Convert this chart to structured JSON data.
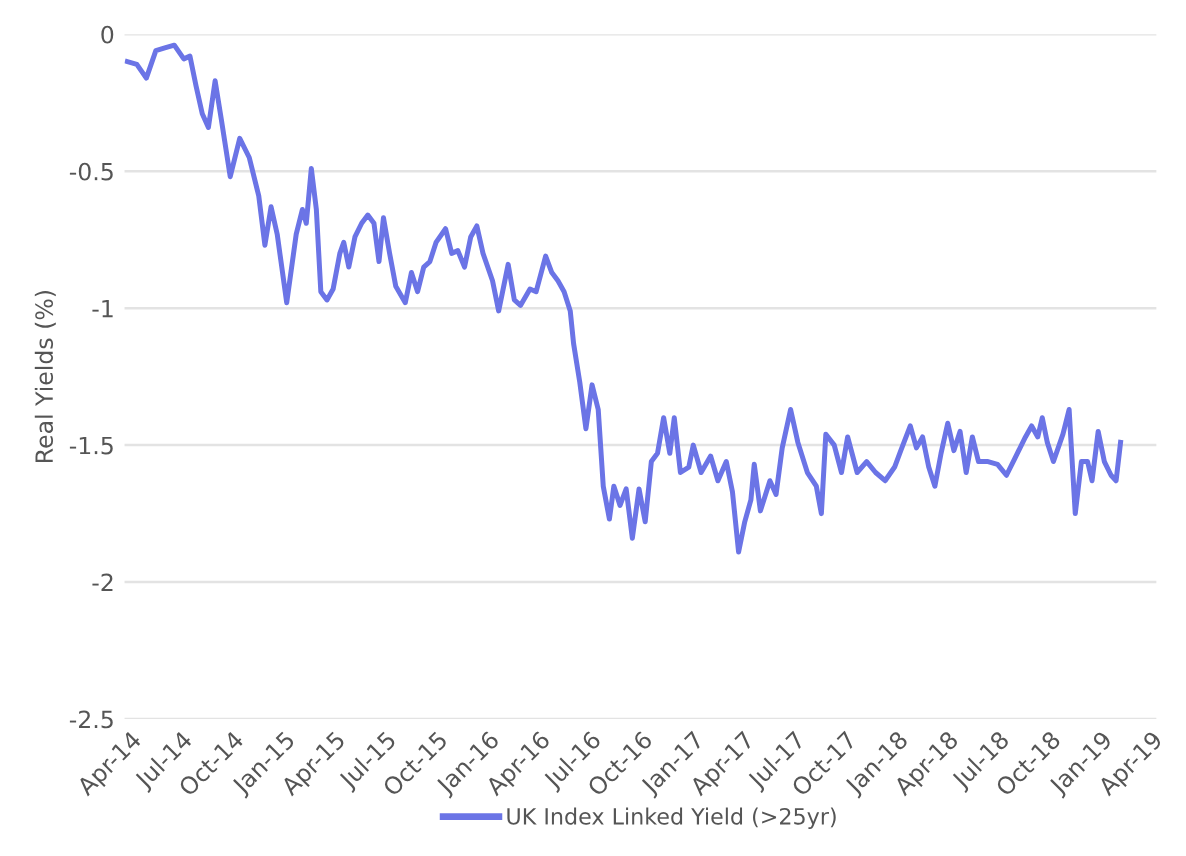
{
  "chart_data": {
    "type": "line",
    "ylabel": "Real Yields (%)",
    "legend": "bottom",
    "grid": "y",
    "line_style": "solid",
    "marker": "none",
    "xlim": [
      "2014-03-22",
      "2019-04-10"
    ],
    "ylim": [
      -2.5,
      0
    ],
    "yticks": [
      0,
      {
        "value": -0.5,
        "label": "-0.5"
      },
      {
        "value": -1,
        "label": "-1"
      },
      {
        "value": -1.5,
        "label": "-1.5"
      },
      {
        "value": -2,
        "label": "-2"
      },
      {
        "value": -2.5,
        "label": "-2.5"
      }
    ],
    "xticks": [
      {
        "value": "2014-04-01",
        "label": "Apr-14"
      },
      {
        "value": "2014-07-01",
        "label": "Jul-14"
      },
      {
        "value": "2014-10-01",
        "label": "Oct-14"
      },
      {
        "value": "2015-01-01",
        "label": "Jan-15"
      },
      {
        "value": "2015-04-01",
        "label": "Apr-15"
      },
      {
        "value": "2015-07-01",
        "label": "Jul-15"
      },
      {
        "value": "2015-10-01",
        "label": "Oct-15"
      },
      {
        "value": "2016-01-01",
        "label": "Jan-16"
      },
      {
        "value": "2016-04-01",
        "label": "Apr-16"
      },
      {
        "value": "2016-07-01",
        "label": "Jul-16"
      },
      {
        "value": "2016-10-01",
        "label": "Oct-16"
      },
      {
        "value": "2017-01-01",
        "label": "Jan-17"
      },
      {
        "value": "2017-04-01",
        "label": "Apr-17"
      },
      {
        "value": "2017-07-01",
        "label": "Jul-17"
      },
      {
        "value": "2017-10-01",
        "label": "Oct-17"
      },
      {
        "value": "2018-01-01",
        "label": "Jan-18"
      },
      {
        "value": "2018-04-01",
        "label": "Apr-18"
      },
      {
        "value": "2018-07-01",
        "label": "Jul-18"
      },
      {
        "value": "2018-10-01",
        "label": "Oct-18"
      },
      {
        "value": "2019-01-01",
        "label": "Jan-19"
      },
      {
        "value": "2019-04-01",
        "label": "Apr-19"
      }
    ],
    "x": [
      "2014-03-27",
      "2014-04-13",
      "2014-04-30",
      "2014-05-17",
      "2014-06-02",
      "2014-06-19",
      "2014-07-06",
      "2014-07-17",
      "2014-07-28",
      "2014-08-08",
      "2014-08-19",
      "2014-08-31",
      "2014-09-11",
      "2014-09-27",
      "2014-10-14",
      "2014-10-31",
      "2014-11-17",
      "2014-11-28",
      "2014-12-09",
      "2014-12-20",
      "2015-01-06",
      "2015-01-23",
      "2015-02-03",
      "2015-02-10",
      "2015-02-19",
      "2015-02-28",
      "2015-03-08",
      "2015-03-19",
      "2015-03-30",
      "2015-04-11",
      "2015-04-18",
      "2015-04-27",
      "2015-05-08",
      "2015-05-20",
      "2015-05-31",
      "2015-06-11",
      "2015-06-20",
      "2015-06-28",
      "2015-07-09",
      "2015-07-20",
      "2015-08-06",
      "2015-08-17",
      "2015-08-28",
      "2015-09-08",
      "2015-09-19",
      "2015-09-30",
      "2015-10-17",
      "2015-10-28",
      "2015-11-08",
      "2015-11-20",
      "2015-12-01",
      "2015-12-12",
      "2015-12-23",
      "2016-01-09",
      "2016-01-20",
      "2016-02-06",
      "2016-02-17",
      "2016-02-28",
      "2016-03-16",
      "2016-03-27",
      "2016-04-13",
      "2016-04-24",
      "2016-05-05",
      "2016-05-16",
      "2016-05-27",
      "2016-06-02",
      "2016-06-13",
      "2016-06-24",
      "2016-07-05",
      "2016-07-16",
      "2016-07-25",
      "2016-08-05",
      "2016-08-13",
      "2016-08-24",
      "2016-09-04",
      "2016-09-15",
      "2016-09-27",
      "2016-10-08",
      "2016-10-19",
      "2016-10-30",
      "2016-11-10",
      "2016-11-21",
      "2016-11-29",
      "2016-12-10",
      "2016-12-25",
      "2017-01-02",
      "2017-01-16",
      "2017-02-02",
      "2017-02-15",
      "2017-03-02",
      "2017-03-13",
      "2017-03-24",
      "2017-04-04",
      "2017-04-15",
      "2017-04-21",
      "2017-05-02",
      "2017-05-19",
      "2017-05-30",
      "2017-06-10",
      "2017-06-25",
      "2017-07-08",
      "2017-07-25",
      "2017-08-10",
      "2017-08-19",
      "2017-08-27",
      "2017-09-11",
      "2017-09-24",
      "2017-10-05",
      "2017-10-22",
      "2017-11-08",
      "2017-11-24",
      "2017-12-11",
      "2017-12-28",
      "2018-01-08",
      "2018-01-25",
      "2018-02-05",
      "2018-02-16",
      "2018-02-27",
      "2018-03-10",
      "2018-03-21",
      "2018-04-02",
      "2018-04-13",
      "2018-04-24",
      "2018-05-05",
      "2018-05-16",
      "2018-05-27",
      "2018-06-13",
      "2018-06-30",
      "2018-07-16",
      "2018-08-02",
      "2018-08-19",
      "2018-08-30",
      "2018-09-10",
      "2018-09-18",
      "2018-09-27",
      "2018-10-08",
      "2018-10-25",
      "2018-11-05",
      "2018-11-16",
      "2018-11-27",
      "2018-12-08",
      "2018-12-16",
      "2018-12-27",
      "2019-01-07",
      "2019-01-19",
      "2019-01-28",
      "2019-02-05"
    ],
    "series": [
      {
        "name": "UK Index Linked Yield (>25yr)",
        "color": "#6b74e6",
        "values": [
          -0.1,
          -0.11,
          -0.16,
          -0.06,
          -0.05,
          -0.04,
          -0.09,
          -0.08,
          -0.19,
          -0.29,
          -0.34,
          -0.17,
          -0.31,
          -0.52,
          -0.38,
          -0.45,
          -0.59,
          -0.77,
          -0.63,
          -0.73,
          -0.98,
          -0.73,
          -0.64,
          -0.69,
          -0.49,
          -0.64,
          -0.94,
          -0.97,
          -0.93,
          -0.8,
          -0.76,
          -0.85,
          -0.74,
          -0.69,
          -0.66,
          -0.69,
          -0.83,
          -0.67,
          -0.8,
          -0.92,
          -0.98,
          -0.87,
          -0.94,
          -0.85,
          -0.83,
          -0.76,
          -0.71,
          -0.8,
          -0.79,
          -0.85,
          -0.74,
          -0.7,
          -0.8,
          -0.9,
          -1.01,
          -0.84,
          -0.97,
          -0.99,
          -0.93,
          -0.94,
          -0.81,
          -0.87,
          -0.9,
          -0.94,
          -1.01,
          -1.13,
          -1.27,
          -1.44,
          -1.28,
          -1.37,
          -1.65,
          -1.77,
          -1.65,
          -1.72,
          -1.66,
          -1.84,
          -1.66,
          -1.78,
          -1.56,
          -1.53,
          -1.4,
          -1.53,
          -1.4,
          -1.6,
          -1.58,
          -1.5,
          -1.6,
          -1.54,
          -1.63,
          -1.56,
          -1.67,
          -1.89,
          -1.78,
          -1.7,
          -1.57,
          -1.74,
          -1.63,
          -1.68,
          -1.51,
          -1.37,
          -1.49,
          -1.6,
          -1.65,
          -1.75,
          -1.46,
          -1.5,
          -1.6,
          -1.47,
          -1.6,
          -1.56,
          -1.6,
          -1.63,
          -1.58,
          -1.52,
          -1.43,
          -1.51,
          -1.47,
          -1.58,
          -1.65,
          -1.53,
          -1.42,
          -1.52,
          -1.45,
          -1.6,
          -1.47,
          -1.56,
          -1.56,
          -1.57,
          -1.61,
          -1.54,
          -1.47,
          -1.43,
          -1.47,
          -1.4,
          -1.49,
          -1.56,
          -1.46,
          -1.37,
          -1.75,
          -1.56,
          -1.56,
          -1.63,
          -1.45,
          -1.56,
          -1.61,
          -1.63,
          -1.49
        ]
      }
    ]
  }
}
